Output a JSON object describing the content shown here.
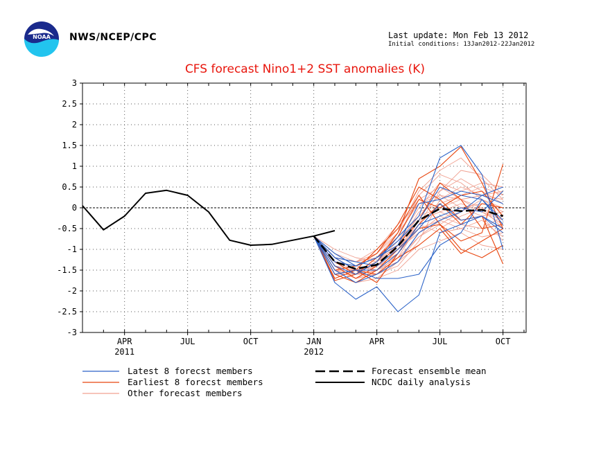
{
  "header": {
    "org": "NWS/NCEP/CPC",
    "last_update": "Last update: Mon Feb 13 2012",
    "initial_conditions": "Initial conditions: 13Jan2012-22Jan2012"
  },
  "colors": {
    "title": "#e8150c",
    "latest": "#2a62c8",
    "earliest": "#e8450e",
    "other": "#f0a090",
    "observed": "#000000",
    "mean": "#000000",
    "logo_blue": "#1a2a8c",
    "logo_cyan": "#22c4ee"
  },
  "chart_data": {
    "type": "line",
    "title": "CFS forecast Nino1+2 SST anomalies (K)",
    "ylim": [
      -3,
      3
    ],
    "yticks": [
      "3",
      "2.5",
      "2",
      "1.5",
      "1",
      "0.5",
      "0",
      "-0.5",
      "-1",
      "-1.5",
      "-2",
      "-2.5",
      "-3"
    ],
    "xticks": [
      {
        "label": "APR",
        "sub": "2011",
        "month": 2
      },
      {
        "label": "JUL",
        "sub": "",
        "month": 5
      },
      {
        "label": "OCT",
        "sub": "",
        "month": 8
      },
      {
        "label": "JAN",
        "sub": "2012",
        "month": 11
      },
      {
        "label": "APR",
        "sub": "",
        "month": 14
      },
      {
        "label": "JUL",
        "sub": "",
        "month": 17
      },
      {
        "label": "OCT",
        "sub": "",
        "month": 20
      }
    ],
    "xlim_months": [
      0,
      21.1
    ],
    "grid": "dotted",
    "legend": [
      {
        "label": "Latest 8 forecst members",
        "style": "latest"
      },
      {
        "label": "Earliest 8 forecst members",
        "style": "earliest"
      },
      {
        "label": "Other forecast members",
        "style": "other"
      },
      {
        "label": "Forecast ensemble mean",
        "style": "mean"
      },
      {
        "label": "NCDC daily analysis",
        "style": "observed"
      }
    ],
    "observed": {
      "name": "NCDC daily analysis",
      "months": [
        0,
        1,
        2,
        3,
        4,
        5,
        6,
        7,
        8,
        9,
        10,
        11,
        12
      ],
      "values": [
        0.05,
        -0.53,
        -0.2,
        0.35,
        0.42,
        0.3,
        -0.1,
        -0.78,
        -0.9,
        -0.88,
        -0.78,
        -0.68,
        -0.55
      ]
    },
    "mean": {
      "name": "Forecast ensemble mean",
      "months": [
        11,
        12,
        13,
        14,
        15,
        16,
        17,
        18,
        19,
        20
      ],
      "values": [
        -0.68,
        -1.3,
        -1.47,
        -1.37,
        -0.93,
        -0.3,
        -0.02,
        -0.08,
        -0.05,
        -0.2
      ]
    },
    "member_months": [
      11,
      12,
      13,
      14,
      15,
      16,
      17,
      18,
      19,
      20
    ],
    "latest_members": [
      [
        -0.68,
        -1.8,
        -2.2,
        -1.9,
        -2.5,
        -2.1,
        -0.6,
        -0.4,
        -0.2,
        -0.5
      ],
      [
        -0.68,
        -1.2,
        -1.5,
        -1.7,
        -1.7,
        -1.6,
        -0.9,
        -0.6,
        0.2,
        -0.3
      ],
      [
        -0.68,
        -1.4,
        -1.6,
        -1.3,
        -0.7,
        -0.2,
        1.2,
        1.5,
        0.8,
        -1.0
      ],
      [
        -0.68,
        -1.1,
        -1.4,
        -1.2,
        -0.9,
        0.1,
        0.2,
        0.4,
        0.3,
        0.1
      ],
      [
        -0.68,
        -1.6,
        -1.5,
        -1.5,
        -1.1,
        -0.4,
        -0.2,
        0.0,
        -0.1,
        0.4
      ],
      [
        -0.68,
        -1.3,
        -1.4,
        -1.2,
        -0.8,
        -0.3,
        0.5,
        0.3,
        0.2,
        -0.4
      ],
      [
        -0.68,
        -1.5,
        -1.8,
        -1.6,
        -1.3,
        -0.6,
        -0.3,
        -0.1,
        0.3,
        0.5
      ],
      [
        -0.68,
        -1.2,
        -1.3,
        -1.4,
        -1.0,
        -0.5,
        0.1,
        -0.3,
        -0.2,
        -0.6
      ]
    ],
    "earliest_members": [
      [
        -0.68,
        -1.75,
        -1.6,
        -1.3,
        -0.6,
        0.7,
        1.0,
        1.47,
        0.6,
        -0.5
      ],
      [
        -0.68,
        -1.6,
        -1.8,
        -1.5,
        -1.0,
        -0.5,
        -0.4,
        -0.8,
        -0.6,
        1.05
      ],
      [
        -0.68,
        -1.5,
        -1.4,
        -1.1,
        -0.4,
        0.5,
        0.2,
        -0.3,
        -0.2,
        -1.35
      ],
      [
        -0.68,
        -1.7,
        -1.5,
        -1.6,
        -1.2,
        -0.9,
        -0.5,
        -1.1,
        -0.8,
        -0.5
      ],
      [
        -0.68,
        -1.3,
        -1.6,
        -1.2,
        -0.7,
        0.2,
        0.0,
        0.3,
        0.4,
        -0.2
      ],
      [
        -0.68,
        -1.4,
        -1.7,
        -1.4,
        -0.9,
        -0.3,
        0.6,
        0.2,
        -0.5,
        -0.4
      ],
      [
        -0.68,
        -1.2,
        -1.5,
        -1.0,
        -0.5,
        0.3,
        -0.4,
        -1.0,
        -1.2,
        -0.9
      ],
      [
        -0.68,
        -1.6,
        -1.5,
        -1.8,
        -1.1,
        -0.4,
        0.1,
        -0.4,
        0.1,
        0.0
      ]
    ],
    "other_members": [
      [
        -0.68,
        -1.2,
        -1.3,
        -1.1,
        -0.6,
        0.1,
        0.4,
        0.9,
        0.8,
        0.3
      ],
      [
        -0.68,
        -1.4,
        -1.5,
        -1.3,
        -0.9,
        -0.2,
        0.3,
        0.2,
        0.0,
        -0.3
      ],
      [
        -0.68,
        -1.0,
        -1.2,
        -1.3,
        -1.0,
        -0.4,
        -0.6,
        -0.5,
        -0.3,
        -0.7
      ],
      [
        -0.68,
        -1.3,
        -1.6,
        -1.5,
        -1.2,
        -0.7,
        -0.3,
        0.0,
        -0.2,
        -0.1
      ],
      [
        -0.68,
        -1.5,
        -1.7,
        -1.6,
        -1.4,
        -0.8,
        0.2,
        0.5,
        0.3,
        0.2
      ],
      [
        -0.68,
        -1.1,
        -1.4,
        -1.2,
        -0.8,
        0.0,
        0.6,
        0.4,
        0.6,
        0.5
      ],
      [
        -0.68,
        -1.3,
        -1.5,
        -1.4,
        -1.1,
        -0.3,
        -0.1,
        0.1,
        -0.1,
        -0.4
      ],
      [
        -0.68,
        -1.6,
        -1.8,
        -1.7,
        -1.5,
        -1.0,
        -0.8,
        -0.6,
        -0.9,
        -1.0
      ],
      [
        -0.68,
        -1.2,
        -1.3,
        -1.2,
        -0.7,
        0.3,
        0.8,
        0.6,
        0.2,
        0.0
      ],
      [
        -0.68,
        -1.4,
        -1.6,
        -1.3,
        -0.9,
        -0.1,
        0.1,
        0.3,
        0.5,
        0.3
      ],
      [
        -0.68,
        -1.3,
        -1.4,
        -1.5,
        -1.0,
        -0.6,
        -0.2,
        -0.4,
        -0.5,
        -0.2
      ],
      [
        -0.68,
        -1.5,
        -1.5,
        -1.4,
        -1.2,
        -0.4,
        0.4,
        0.7,
        0.4,
        0.1
      ],
      [
        -0.68,
        -1.1,
        -1.3,
        -1.1,
        -0.5,
        0.2,
        0.5,
        0.2,
        -0.1,
        -0.3
      ],
      [
        -0.68,
        -1.4,
        -1.7,
        -1.5,
        -1.3,
        -0.9,
        -0.5,
        -0.2,
        0.0,
        -0.5
      ],
      [
        -0.68,
        -1.2,
        -1.5,
        -1.3,
        -0.8,
        -0.2,
        0.0,
        0.2,
        0.3,
        0.4
      ],
      [
        -0.68,
        -1.6,
        -1.6,
        -1.6,
        -1.1,
        -0.5,
        -0.3,
        -0.5,
        -0.7,
        -0.6
      ],
      [
        -0.68,
        -1.3,
        -1.4,
        -1.2,
        -0.6,
        0.4,
        0.9,
        1.2,
        0.7,
        0.2
      ],
      [
        -0.68,
        -1.5,
        -1.6,
        -1.4,
        -1.0,
        -0.3,
        -0.1,
        -0.3,
        -0.2,
        -0.8
      ],
      [
        -0.68,
        -1.2,
        -1.3,
        -1.0,
        -0.4,
        0.1,
        0.3,
        0.0,
        0.1,
        0.0
      ],
      [
        -0.68,
        -1.4,
        -1.5,
        -1.7,
        -1.3,
        -0.7,
        -0.4,
        -0.1,
        0.2,
        -0.1
      ]
    ]
  }
}
